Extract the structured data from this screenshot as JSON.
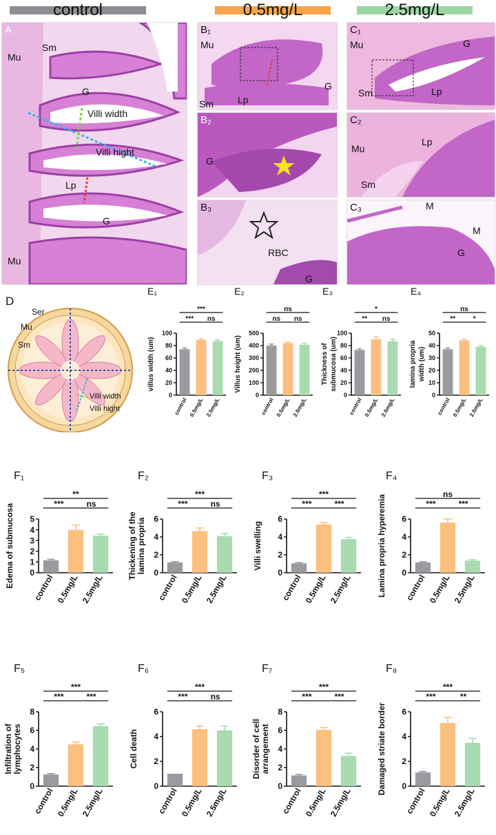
{
  "headers": [
    {
      "label": "control",
      "color": "#8e8e93"
    },
    {
      "label": "0.5mg/L",
      "color": "#f6a34a"
    },
    {
      "label": "2.5mg/L",
      "color": "#9bd5a3"
    }
  ],
  "colors": {
    "control": "#9a9aa0",
    "low": "#fbbf7f",
    "high": "#a8dcb0",
    "tissue": "#c266c8",
    "tissue_light": "#f0c9f0"
  },
  "micro": {
    "A": {
      "label": "A",
      "tags": [
        "Mu",
        "Sm",
        "G",
        "Villi width",
        "Villi hight",
        "Lp",
        "G",
        "Mu"
      ]
    },
    "B1": {
      "label": "B₁",
      "tags": [
        "Mu",
        "Sm",
        "Lp",
        "G"
      ]
    },
    "B2": {
      "label": "B₂",
      "tags": [
        "G"
      ]
    },
    "B3": {
      "label": "B₃",
      "tags": [
        "RBC",
        "G"
      ]
    },
    "C1": {
      "label": "C₁",
      "tags": [
        "Mu",
        "Sm",
        "Lp",
        "G"
      ]
    },
    "C2": {
      "label": "C₂",
      "tags": [
        "Mu",
        "Lp",
        "Sm"
      ]
    },
    "C3": {
      "label": "C₃",
      "tags": [
        "M",
        "M",
        "G"
      ]
    }
  },
  "diagram": {
    "label": "D",
    "tags": [
      "Ser",
      "Mu",
      "Sm",
      "Villi width",
      "Villi hight"
    ]
  },
  "chart_data": [
    {
      "id": "E1",
      "label": "E₁",
      "type": "bar",
      "ylabel": "villus width (um)",
      "categories": [
        "control",
        "0.5mg/L",
        "2.5mg/L"
      ],
      "values": [
        74,
        89,
        87
      ],
      "errors": [
        2,
        2,
        2
      ],
      "ylim": [
        0,
        100
      ],
      "yticks": [
        0,
        20,
        40,
        60,
        80,
        100
      ],
      "sig": [
        {
          "a": 0,
          "b": 1,
          "t": "***"
        },
        {
          "a": 1,
          "b": 2,
          "t": "ns"
        },
        {
          "a": 0,
          "b": 2,
          "t": "***"
        }
      ]
    },
    {
      "id": "E2",
      "label": "E₂",
      "type": "bar",
      "ylabel": "Villus height (um)",
      "categories": [
        "control",
        "0.5mg/L",
        "2.5mg/L"
      ],
      "values": [
        400,
        420,
        407
      ],
      "errors": [
        12,
        8,
        12
      ],
      "ylim": [
        0,
        500
      ],
      "yticks": [
        0,
        100,
        200,
        300,
        400,
        500
      ],
      "sig": [
        {
          "a": 0,
          "b": 1,
          "t": "ns"
        },
        {
          "a": 1,
          "b": 2,
          "t": "ns"
        },
        {
          "a": 0,
          "b": 2,
          "t": "ns"
        }
      ]
    },
    {
      "id": "E3",
      "label": "E₃",
      "type": "bar",
      "ylabel": "Thickness of submucosa (um)",
      "categories": [
        "control",
        "0.5mg/L",
        "2.5mg/L"
      ],
      "values": [
        73,
        90,
        87
      ],
      "errors": [
        2,
        4,
        3
      ],
      "ylim": [
        0,
        100
      ],
      "yticks": [
        0,
        20,
        40,
        60,
        80,
        100
      ],
      "sig": [
        {
          "a": 0,
          "b": 1,
          "t": "**"
        },
        {
          "a": 1,
          "b": 2,
          "t": "ns"
        },
        {
          "a": 0,
          "b": 2,
          "t": "*"
        }
      ]
    },
    {
      "id": "E4",
      "label": "E₄",
      "type": "bar",
      "ylabel": "lamina propria width (um)",
      "categories": [
        "control",
        "0.5mg/L",
        "2.5mg/L"
      ],
      "values": [
        37,
        44,
        39
      ],
      "errors": [
        1,
        1,
        1
      ],
      "ylim": [
        0,
        50
      ],
      "yticks": [
        0,
        10,
        20,
        30,
        40,
        50
      ],
      "sig": [
        {
          "a": 0,
          "b": 1,
          "t": "**"
        },
        {
          "a": 1,
          "b": 2,
          "t": "*"
        },
        {
          "a": 0,
          "b": 2,
          "t": "ns"
        }
      ]
    },
    {
      "id": "F1",
      "label": "F₁",
      "type": "bar",
      "ylabel": "Edema of submucosa",
      "categories": [
        "control",
        "0.5mg/L",
        "2.5mg/L"
      ],
      "values": [
        1.15,
        4.0,
        3.45
      ],
      "errors": [
        0.1,
        0.45,
        0.15
      ],
      "ylim": [
        0,
        5
      ],
      "yticks": [
        0,
        1,
        2,
        3,
        4,
        5
      ],
      "sig": [
        {
          "a": 0,
          "b": 1,
          "t": "***"
        },
        {
          "a": 1,
          "b": 2,
          "t": "ns"
        },
        {
          "a": 0,
          "b": 2,
          "t": "**"
        }
      ]
    },
    {
      "id": "F2",
      "label": "F₂",
      "type": "bar",
      "ylabel": "Thickening of the lamina propria",
      "categories": [
        "control",
        "0.5mg/L",
        "2.5mg/L"
      ],
      "values": [
        1.15,
        4.65,
        4.1
      ],
      "errors": [
        0.1,
        0.35,
        0.3
      ],
      "ylim": [
        0,
        6
      ],
      "yticks": [
        0,
        2,
        4,
        6
      ],
      "sig": [
        {
          "a": 0,
          "b": 1,
          "t": "***"
        },
        {
          "a": 1,
          "b": 2,
          "t": "ns"
        },
        {
          "a": 0,
          "b": 2,
          "t": "***"
        }
      ]
    },
    {
      "id": "F3",
      "label": "F₃",
      "type": "bar",
      "ylabel": "Villi swelling",
      "categories": [
        "control",
        "0.5mg/L",
        "2.5mg/L"
      ],
      "values": [
        1.05,
        5.4,
        3.75
      ],
      "errors": [
        0.08,
        0.2,
        0.2
      ],
      "ylim": [
        0,
        6
      ],
      "yticks": [
        0,
        2,
        4,
        6
      ],
      "sig": [
        {
          "a": 0,
          "b": 1,
          "t": "***"
        },
        {
          "a": 1,
          "b": 2,
          "t": "***"
        },
        {
          "a": 0,
          "b": 2,
          "t": "***"
        }
      ]
    },
    {
      "id": "F4",
      "label": "F₄",
      "type": "bar",
      "ylabel": "Lamina propria hyperemia",
      "categories": [
        "control",
        "0.5mg/L",
        "2.5mg/L"
      ],
      "values": [
        1.15,
        5.6,
        1.35
      ],
      "errors": [
        0.08,
        0.4,
        0.1
      ],
      "ylim": [
        0,
        6
      ],
      "yticks": [
        0,
        2,
        4,
        6
      ],
      "sig": [
        {
          "a": 0,
          "b": 1,
          "t": "***"
        },
        {
          "a": 1,
          "b": 2,
          "t": "***"
        },
        {
          "a": 0,
          "b": 2,
          "t": "ns"
        }
      ]
    },
    {
      "id": "F5",
      "label": "F₅",
      "type": "bar",
      "ylabel": "Infiltration of lymphocytes",
      "categories": [
        "control",
        "0.5mg/L",
        "2.5mg/L"
      ],
      "values": [
        1.25,
        4.5,
        6.45
      ],
      "errors": [
        0.1,
        0.25,
        0.25
      ],
      "ylim": [
        0,
        8
      ],
      "yticks": [
        0,
        2,
        4,
        6,
        8
      ],
      "sig": [
        {
          "a": 0,
          "b": 1,
          "t": "***"
        },
        {
          "a": 1,
          "b": 2,
          "t": "***"
        },
        {
          "a": 0,
          "b": 2,
          "t": "***"
        }
      ]
    },
    {
      "id": "F6",
      "label": "F₆",
      "type": "bar",
      "ylabel": "Cell death",
      "categories": [
        "control",
        "0.5mg/L",
        "2.5mg/L"
      ],
      "values": [
        1.0,
        4.6,
        4.5
      ],
      "errors": [
        0,
        0.25,
        0.35
      ],
      "ylim": [
        0,
        6
      ],
      "yticks": [
        0,
        2,
        4,
        6
      ],
      "sig": [
        {
          "a": 0,
          "b": 1,
          "t": "***"
        },
        {
          "a": 1,
          "b": 2,
          "t": "ns"
        },
        {
          "a": 0,
          "b": 2,
          "t": "***"
        }
      ]
    },
    {
      "id": "F7",
      "label": "F₇",
      "type": "bar",
      "ylabel": "Disorder of cell arrangement",
      "categories": [
        "control",
        "0.5mg/L",
        "2.5mg/L"
      ],
      "values": [
        1.15,
        6.05,
        3.25
      ],
      "errors": [
        0.1,
        0.25,
        0.3
      ],
      "ylim": [
        0,
        8
      ],
      "yticks": [
        0,
        2,
        4,
        6,
        8
      ],
      "sig": [
        {
          "a": 0,
          "b": 1,
          "t": "***"
        },
        {
          "a": 1,
          "b": 2,
          "t": "***"
        },
        {
          "a": 0,
          "b": 2,
          "t": "***"
        }
      ]
    },
    {
      "id": "F8",
      "label": "F₈",
      "type": "bar",
      "ylabel": "Damaged striate border",
      "categories": [
        "control",
        "0.5mg/L",
        "2.5mg/L"
      ],
      "values": [
        1.1,
        5.1,
        3.5
      ],
      "errors": [
        0.08,
        0.45,
        0.35
      ],
      "ylim": [
        0,
        6
      ],
      "yticks": [
        0,
        2,
        4,
        6
      ],
      "sig": [
        {
          "a": 0,
          "b": 1,
          "t": "***"
        },
        {
          "a": 1,
          "b": 2,
          "t": "**"
        },
        {
          "a": 0,
          "b": 2,
          "t": "***"
        }
      ]
    }
  ]
}
